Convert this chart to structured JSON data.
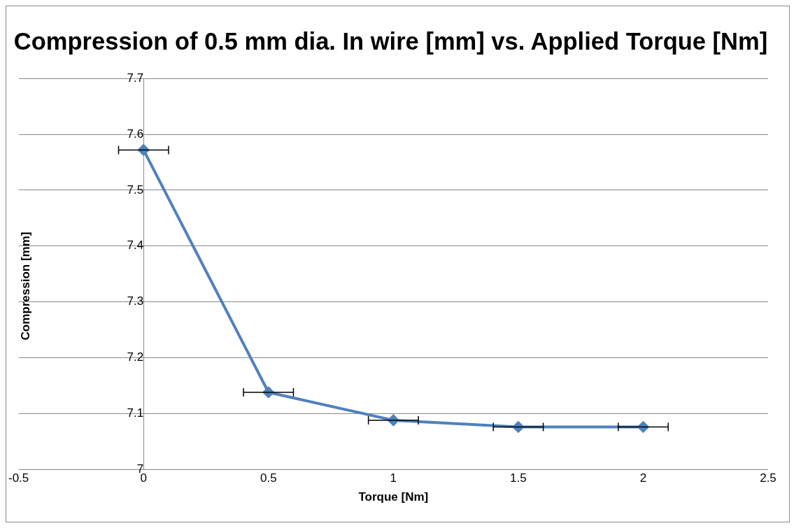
{
  "chart_data": {
    "type": "line",
    "title": "Compression of 0.5 mm dia. In wire [mm] vs. Applied Torque [Nm]",
    "xlabel": "Torque [Nm]",
    "ylabel": "Compression [mm]",
    "x": [
      0,
      0.5,
      1,
      1.5,
      2
    ],
    "series": [
      {
        "color": "#4f81bd",
        "values": [
          7.572,
          7.138,
          7.088,
          7.076,
          7.076
        ],
        "xerrors": [
          0.1,
          0.1,
          0.1,
          0.1,
          0.1
        ]
      }
    ],
    "xlim": [
      -0.5,
      2.5
    ],
    "xticks": [
      -0.5,
      0,
      0.5,
      1,
      1.5,
      2,
      2.5
    ],
    "ylim": [
      7,
      7.7
    ],
    "yticks": [
      7,
      7.1,
      7.2,
      7.3,
      7.4,
      7.5,
      7.6,
      7.7
    ],
    "grid": "y",
    "legend": false,
    "marker": "diamond",
    "line_style": "solid"
  }
}
